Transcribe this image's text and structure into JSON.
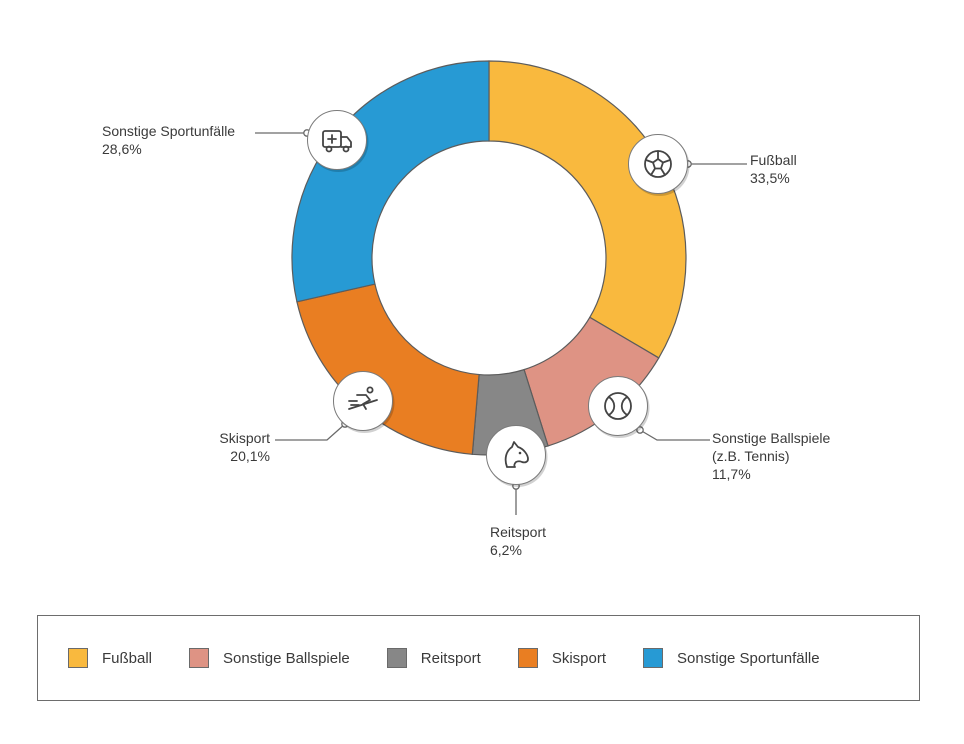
{
  "chart_data": {
    "type": "pie",
    "donut": true,
    "slices": [
      {
        "key": "fussball",
        "label": "Fußball",
        "value": 33.5,
        "value_text": "33,5%",
        "color": "#F9B93E",
        "icon": "soccer-ball-icon"
      },
      {
        "key": "ballspiele",
        "label": "Sonstige Ballspiele",
        "label_line2": "(z.B. Tennis)",
        "value": 11.7,
        "value_text": "11,7%",
        "color": "#DE9384",
        "icon": "tennis-ball-icon"
      },
      {
        "key": "reitsport",
        "label": "Reitsport",
        "value": 6.2,
        "value_text": "6,2%",
        "color": "#878787",
        "icon": "horse-head-icon"
      },
      {
        "key": "skisport",
        "label": "Skisport",
        "value": 20.1,
        "value_text": "20,1%",
        "color": "#E97E22",
        "icon": "skier-icon"
      },
      {
        "key": "sonstige",
        "label": "Sonstige Sportunfälle",
        "value": 28.6,
        "value_text": "28,6%",
        "color": "#279AD4",
        "icon": "ambulance-icon"
      }
    ],
    "legend": {
      "placement": "bottom",
      "items": [
        "Fußball",
        "Sonstige Ballspiele",
        "Reitsport",
        "Skisport",
        "Sonstige Sportunfälle"
      ]
    }
  }
}
